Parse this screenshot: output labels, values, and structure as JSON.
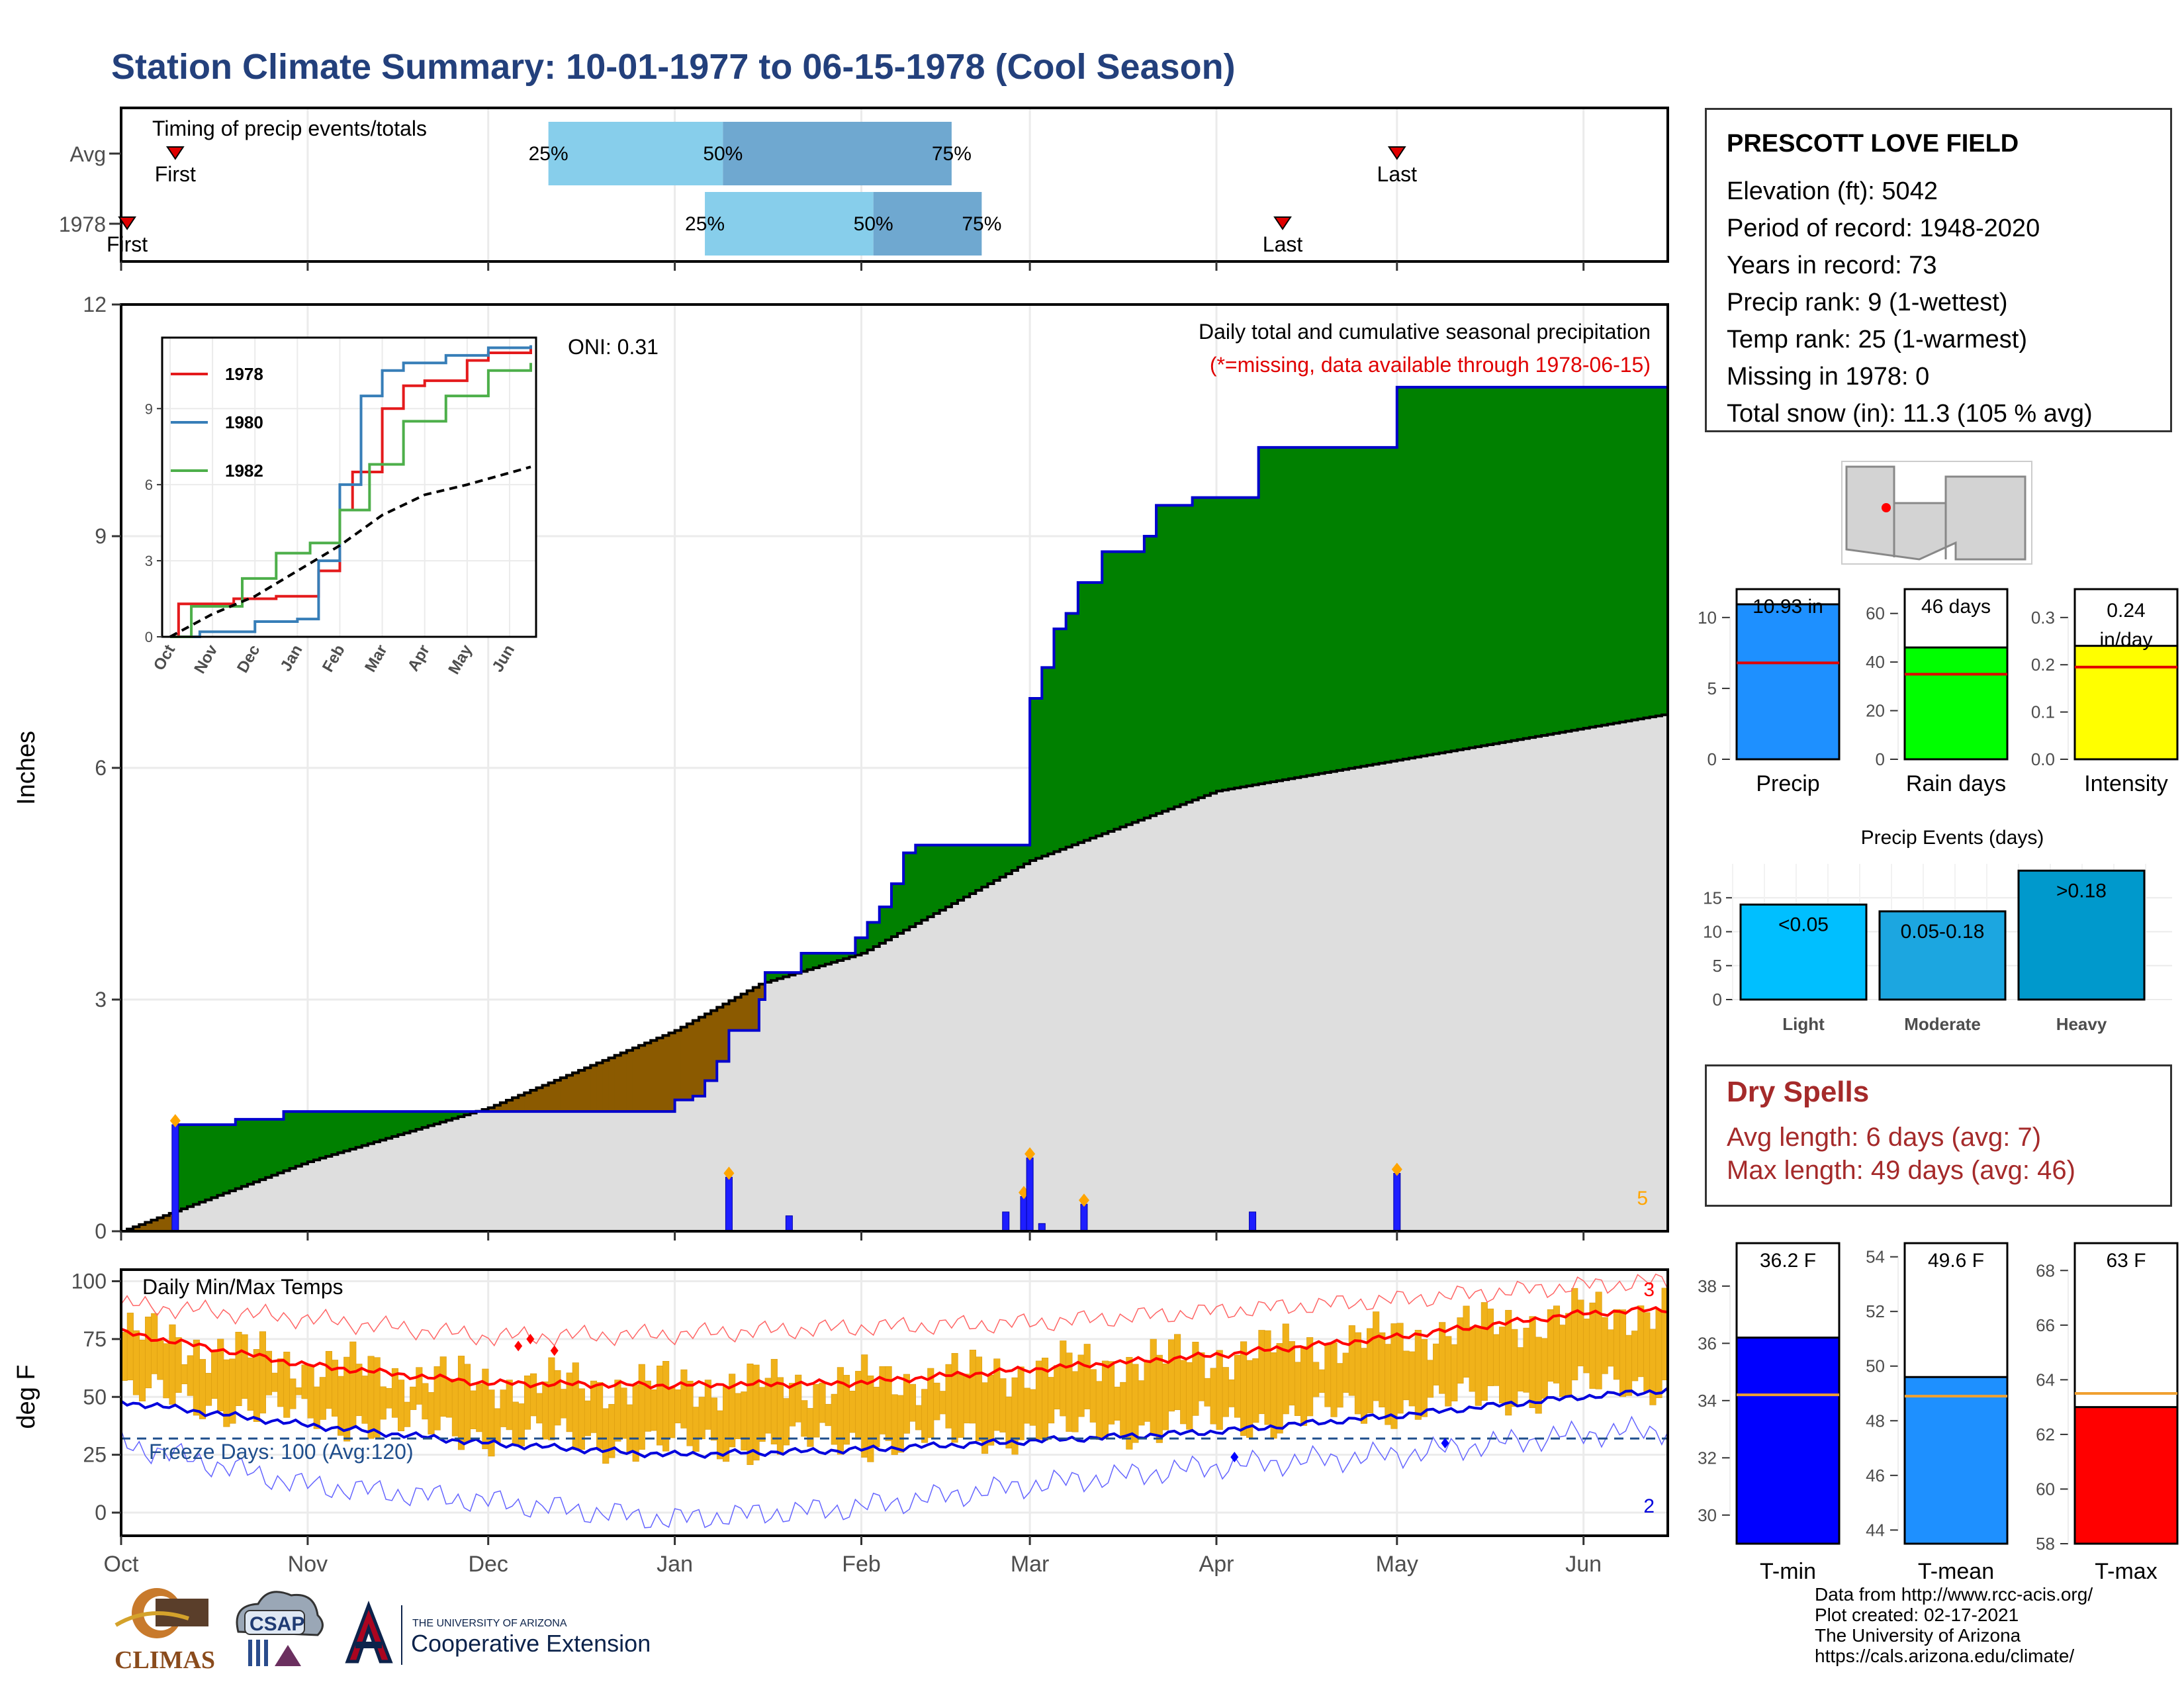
{
  "title": "Station Climate Summary: 10-01-1977 to 06-15-1978 (Cool Season)",
  "station": {
    "name": "PRESCOTT LOVE FIELD",
    "lines": [
      "Elevation (ft): 5042",
      "Period of record: 1948-2020",
      "Years in record: 73",
      "Precip rank: 9 (1-wettest)",
      "Temp rank: 25 (1-warmest)",
      "Missing in 1978: 0",
      "Total snow (in): 11.3 (105 % avg)"
    ]
  },
  "timing": {
    "label": "Timing of precip events/totals",
    "rows": [
      {
        "name": "Avg",
        "first": "First",
        "last": "Last",
        "p25": "25%",
        "p50": "50%",
        "p75": "75%"
      },
      {
        "name": "1978",
        "first": "First",
        "last": "Last",
        "p25": "25%",
        "p50": "50%",
        "p75": "75%"
      }
    ]
  },
  "precip_panel": {
    "ylabel": "Inches",
    "oni": "ONI: 0.31",
    "note1": "Daily total and cumulative seasonal precipitation",
    "note2": "(*=missing, data available through 1978-06-15)",
    "count_label": "5",
    "inset_legend": [
      "1978",
      "1980",
      "1982"
    ]
  },
  "temp_panel": {
    "ylabel": "deg F",
    "label": "Daily Min/Max Temps",
    "freeze": "Freeze Days: 100 (Avg:120)",
    "count_hi": "3",
    "count_lo": "2"
  },
  "months": [
    "Oct",
    "Nov",
    "Dec",
    "Jan",
    "Feb",
    "Mar",
    "Apr",
    "May",
    "Jun"
  ],
  "inset_months": [
    "Oct",
    "Nov",
    "Dec",
    "Jan",
    "Feb",
    "Mar",
    "Apr",
    "May",
    "Jun"
  ],
  "bars": {
    "precip": {
      "label": "Precip",
      "value_text": "10.93 in",
      "value": 10.93,
      "avg": 6.8,
      "ylim": [
        0,
        12
      ],
      "ticks": [
        "0",
        "5",
        "10"
      ],
      "color": "#1e90ff"
    },
    "raindays": {
      "label": "Rain days",
      "value_text": "46 days",
      "value": 46,
      "avg": 35,
      "ylim": [
        0,
        70
      ],
      "ticks": [
        "0",
        "20",
        "40",
        "60"
      ],
      "color": "#00ff00"
    },
    "intensity": {
      "label": "Intensity",
      "value_text": "0.24 in/day",
      "value": 0.24,
      "avg": 0.195,
      "ylim": [
        0,
        0.36
      ],
      "ticks": [
        "0.0",
        "0.1",
        "0.2",
        "0.3"
      ],
      "color": "#ffff00"
    }
  },
  "events": {
    "title": "Precip Events (days)",
    "ticks": [
      "0",
      "5",
      "10",
      "15"
    ],
    "bars": [
      {
        "label": "Light",
        "bar_text": "<0.05",
        "value": 14,
        "color": "#00bfff"
      },
      {
        "label": "Moderate",
        "bar_text": "0.05-0.18",
        "value": 13,
        "color": "#1ca6e0"
      },
      {
        "label": "Heavy",
        "bar_text": ">0.18",
        "value": 19,
        "color": "#0099cc"
      }
    ]
  },
  "dry": {
    "title": "Dry Spells",
    "avg": "Avg length: 6 days (avg: 7)",
    "max": "Max length: 49 days (avg: 46)"
  },
  "temps": {
    "tmin": {
      "label": "T-min",
      "value_text": "36.2 F",
      "value": 36.2,
      "avg": 34.2,
      "ylim": [
        29,
        39.5
      ],
      "ticks": [
        "30",
        "32",
        "34",
        "36",
        "38"
      ],
      "color": "#0000ff"
    },
    "tmean": {
      "label": "T-mean",
      "value_text": "49.6 F",
      "value": 49.6,
      "avg": 48.9,
      "ylim": [
        43.5,
        54.5
      ],
      "ticks": [
        "44",
        "46",
        "48",
        "50",
        "52",
        "54"
      ],
      "color": "#1e90ff"
    },
    "tmax": {
      "label": "T-max",
      "value_text": "63 F",
      "value": 63,
      "avg": 63.5,
      "ylim": [
        58,
        69
      ],
      "ticks": [
        "58",
        "60",
        "62",
        "64",
        "66",
        "68"
      ],
      "color": "#ff0000"
    }
  },
  "credits": [
    "Data from http://www.rcc-acis.org/",
    "Plot created: 02-17-2021",
    "The University of Arizona",
    "https://cals.arizona.edu/climate/"
  ],
  "logos": {
    "climas": "CLIMAS",
    "csap": "CSAP",
    "ua_small": "THE UNIVERSITY OF ARIZONA",
    "ua_big": "Cooperative Extension"
  },
  "chart_data": [
    {
      "type": "area",
      "name": "Daily total and cumulative seasonal precipitation",
      "ylabel": "Inches",
      "ylim": [
        0,
        12
      ],
      "yticks": [
        0,
        3,
        6,
        9,
        12
      ],
      "x_dates": [
        "1977-10-01",
        "1977-10-09",
        "1977-10-10",
        "1977-10-20",
        "1977-10-28",
        "1977-12-06",
        "1978-01-01",
        "1978-01-04",
        "1978-01-06",
        "1978-01-08",
        "1978-01-10",
        "1978-01-15",
        "1978-01-16",
        "1978-01-22",
        "1978-01-31",
        "1978-02-02",
        "1978-02-04",
        "1978-02-06",
        "1978-02-08",
        "1978-02-10",
        "1978-02-16",
        "1978-02-22",
        "1978-02-28",
        "1978-03-01",
        "1978-03-03",
        "1978-03-05",
        "1978-03-07",
        "1978-03-09",
        "1978-03-13",
        "1978-03-15",
        "1978-03-20",
        "1978-03-22",
        "1978-03-28",
        "1978-04-02",
        "1978-04-08",
        "1978-04-25",
        "1978-05-01",
        "1978-06-15"
      ],
      "cumulative_1978": [
        0,
        0,
        1.38,
        1.45,
        1.55,
        1.55,
        1.7,
        1.75,
        1.95,
        2.2,
        2.6,
        3.0,
        3.35,
        3.6,
        3.8,
        4.0,
        4.2,
        4.5,
        4.9,
        5.0,
        5.0,
        5.0,
        5.0,
        6.9,
        7.3,
        7.8,
        8.0,
        8.4,
        8.8,
        8.8,
        9.0,
        9.4,
        9.5,
        9.5,
        10.15,
        10.15,
        10.93,
        10.93
      ],
      "avg_dates": [
        "1977-10-01",
        "1977-11-01",
        "1977-12-01",
        "1978-01-01",
        "1978-01-15",
        "1978-02-01",
        "1978-03-01",
        "1978-04-01",
        "1978-05-01",
        "1978-06-15"
      ],
      "cumulative_avg": [
        0,
        0.9,
        1.6,
        2.6,
        3.2,
        3.6,
        4.8,
        5.7,
        6.1,
        6.7
      ],
      "daily_dates": [
        "1977-10-10",
        "1978-01-10",
        "1978-01-20",
        "1978-02-25",
        "1978-02-28",
        "1978-03-01",
        "1978-03-03",
        "1978-03-10",
        "1978-04-07",
        "1978-05-01"
      ],
      "daily_values": [
        1.38,
        0.7,
        0.2,
        0.25,
        0.45,
        0.95,
        0.1,
        0.35,
        0.25,
        0.75
      ],
      "oni": 0.31
    },
    {
      "type": "line",
      "name": "Inset: cumulative precip",
      "legend": [
        "1978",
        "1980",
        "1982"
      ],
      "yticks": [
        0,
        3,
        6,
        9
      ],
      "xticks": [
        "Oct",
        "Nov",
        "Dec",
        "Jan",
        "Feb",
        "Mar",
        "Apr",
        "May",
        "Jun"
      ],
      "series": [
        {
          "name": "1978",
          "color": "#e41a1c",
          "x": [
            0,
            0.2,
            1.5,
            2.5,
            3.5,
            4,
            4.3,
            5,
            5.5,
            6,
            7,
            7.5,
            8.5
          ],
          "y": [
            0,
            1.3,
            1.5,
            1.6,
            2.6,
            5.0,
            6.5,
            9.0,
            9.9,
            10.1,
            10.9,
            11.2,
            11.5
          ]
        },
        {
          "name": "1980",
          "color": "#377eb8",
          "x": [
            0,
            0.7,
            2,
            3,
            3.5,
            4,
            4.5,
            5,
            5.5,
            6.5,
            7.5,
            8.5
          ],
          "y": [
            0,
            0.2,
            0.6,
            0.7,
            3.0,
            6.0,
            9.5,
            10.5,
            10.8,
            11.1,
            11.4,
            11.5
          ]
        },
        {
          "name": "1982",
          "color": "#4daf4a",
          "x": [
            0,
            0.5,
            1.7,
            2.5,
            3.3,
            4,
            4.7,
            5.5,
            6.5,
            7.5,
            8.5
          ],
          "y": [
            0,
            1.2,
            2.3,
            3.3,
            3.7,
            5.0,
            6.8,
            8.5,
            9.5,
            10.5,
            10.8
          ]
        },
        {
          "name": "avg",
          "color": "#000000",
          "x": [
            0,
            1,
            2,
            3,
            4,
            5,
            6,
            7,
            8.5
          ],
          "y": [
            0,
            0.9,
            1.6,
            2.6,
            3.6,
            4.8,
            5.6,
            6.0,
            6.7
          ]
        }
      ]
    },
    {
      "type": "line",
      "name": "Daily Min/Max Temps",
      "ylabel": "deg F",
      "ylim": [
        -10,
        105
      ],
      "yticks": [
        0,
        25,
        50,
        75,
        100
      ],
      "freeze_line": 32,
      "months_x": [
        0,
        1,
        2,
        3,
        4,
        5,
        6,
        7,
        8,
        8.5
      ],
      "avg_max": [
        78,
        64,
        56,
        55,
        56,
        62,
        68,
        76,
        86,
        88
      ],
      "avg_min": [
        48,
        38,
        30,
        25,
        27,
        31,
        35,
        42,
        50,
        53
      ],
      "record_max": [
        90,
        84,
        76,
        77,
        80,
        82,
        87,
        92,
        98,
        100
      ],
      "record_min": [
        30,
        12,
        5,
        -3,
        2,
        12,
        20,
        25,
        34,
        36
      ]
    }
  ]
}
